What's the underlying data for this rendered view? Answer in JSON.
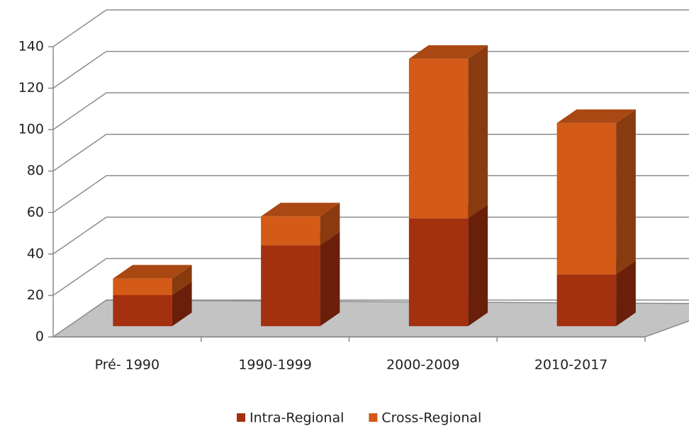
{
  "chart_data": {
    "type": "bar3d_stacked",
    "categories": [
      "Pré- 1990",
      "1990-1999",
      "2000-2009",
      "2010-2017"
    ],
    "series": [
      {
        "name": "Intra-Regional",
        "color": "#a3300f",
        "values": [
          15,
          39,
          52,
          25
        ]
      },
      {
        "name": "Cross-Regional",
        "color": "#d35a17",
        "values": [
          8,
          14,
          77,
          73
        ]
      }
    ],
    "ylim": [
      0,
      140
    ],
    "yticks": [
      0,
      20,
      40,
      60,
      80,
      100,
      120,
      140
    ],
    "grid": true,
    "legend": "bottom"
  }
}
